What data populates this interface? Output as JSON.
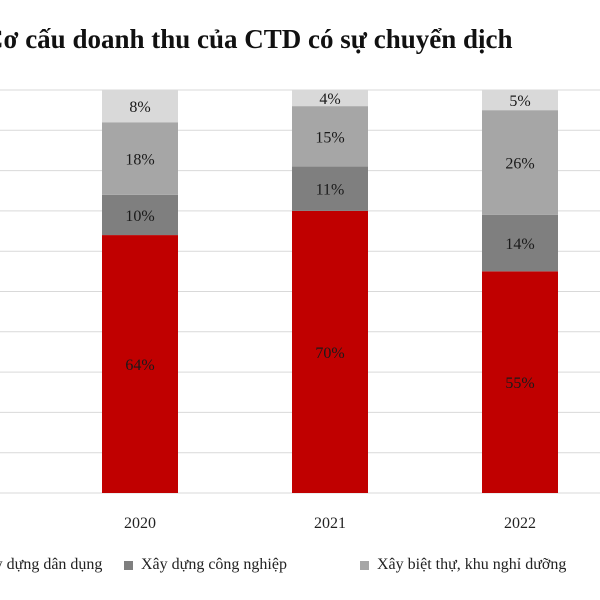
{
  "chart_data": {
    "type": "bar",
    "stacked": true,
    "title": "Cơ cấu doanh thu của CTD có sự chuyển dịch",
    "categories": [
      "2020",
      "2021",
      "2022"
    ],
    "series": [
      {
        "name": "Xây dựng dân dụng",
        "color": "#c00000",
        "values": [
          64,
          70,
          55
        ],
        "labels": [
          "64%",
          "70%",
          "55%"
        ]
      },
      {
        "name": "Xây dựng công nghiệp",
        "color": "#7f7f7f",
        "values": [
          10,
          11,
          14
        ],
        "labels": [
          "10%",
          "11%",
          "14%"
        ]
      },
      {
        "name": "Xây biệt thự, khu nghỉ dưỡng",
        "color": "#a6a6a6",
        "values": [
          18,
          15,
          26
        ],
        "labels": [
          "18%",
          "15%",
          "26%"
        ]
      },
      {
        "color": "#d9d9d9",
        "values": [
          8,
          4,
          5
        ],
        "labels": [
          "8%",
          "4%",
          "5%"
        ]
      }
    ],
    "ylim": [
      0,
      100
    ],
    "grid": true,
    "legend_position": "bottom"
  }
}
